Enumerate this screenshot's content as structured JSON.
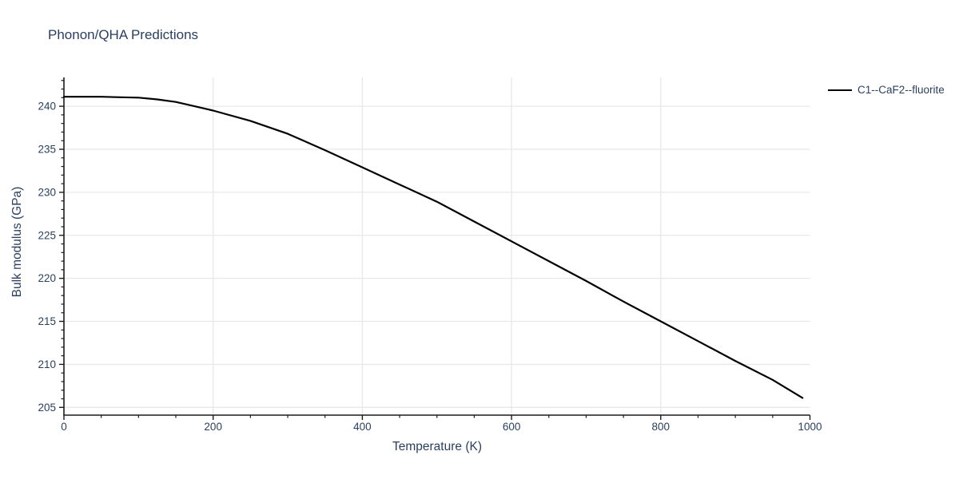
{
  "title": "Phonon/QHA Predictions",
  "colors": {
    "text": "#2a3f5f",
    "grid": "#e8e8e8",
    "axis": "#1c1c1c",
    "background": "#ffffff",
    "series_line": "#000000"
  },
  "chart_data": {
    "type": "line",
    "title": "Phonon/QHA Predictions",
    "xlabel": "Temperature (K)",
    "ylabel": "Bulk modulus (GPa)",
    "xlim": [
      0,
      1000
    ],
    "ylim": [
      204.1,
      243.35
    ],
    "x_major_ticks": [
      0,
      200,
      400,
      600,
      800,
      1000
    ],
    "x_minor_step": 50,
    "y_major_ticks": [
      205,
      210,
      215,
      220,
      225,
      230,
      235,
      240
    ],
    "y_minor_step": 1,
    "grid": "major-only",
    "legend_position": "top-right-outside",
    "series": [
      {
        "name": "C1--CaF2--fluorite",
        "color": "#000000",
        "x": [
          0,
          25,
          50,
          75,
          100,
          125,
          150,
          175,
          200,
          250,
          300,
          350,
          400,
          450,
          500,
          550,
          600,
          650,
          700,
          750,
          800,
          850,
          900,
          950,
          990
        ],
        "y": [
          241.1,
          241.1,
          241.1,
          241.05,
          241.0,
          240.8,
          240.5,
          240.0,
          239.5,
          238.3,
          236.8,
          234.9,
          232.9,
          230.9,
          228.9,
          226.6,
          224.3,
          222.0,
          219.7,
          217.3,
          215.0,
          212.7,
          210.4,
          208.2,
          206.1
        ]
      }
    ]
  }
}
